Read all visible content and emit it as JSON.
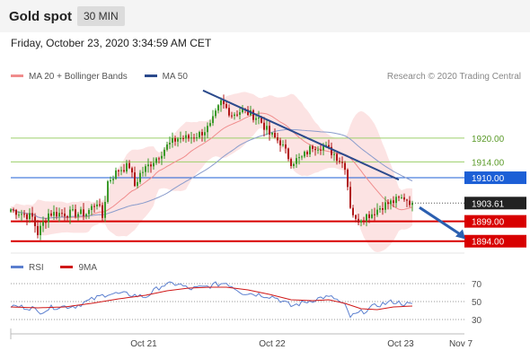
{
  "header": {
    "title": "Gold spot",
    "timeframe": "30 MIN"
  },
  "date_line": "Friday, October 23, 2020 3:34:59 AM CET",
  "legend": {
    "ma20": {
      "label": "MA 20 + Bollinger Bands",
      "color": "#f08c8c"
    },
    "ma50": {
      "label": "MA 50",
      "color": "#2b4a8c"
    }
  },
  "research": "Research © 2020 Trading Central",
  "rsi_legend": {
    "rsi": {
      "label": "RSI",
      "color": "#5b7fcf"
    },
    "ma9": {
      "label": "9MA",
      "color": "#d01818"
    }
  },
  "chart_data": {
    "type": "candlestick",
    "x_axis": {
      "ticks": [
        "Oct 21",
        "Oct 22",
        "Oct 23",
        "Nov 7"
      ]
    },
    "y_range": [
      1891,
      1934
    ],
    "levels": [
      {
        "label": "1920.00",
        "value": 1920.0,
        "kind": "resistance-minor"
      },
      {
        "label": "1914.00",
        "value": 1914.0,
        "kind": "resistance-minor"
      },
      {
        "label": "1910.00",
        "value": 1910.0,
        "kind": "pivot"
      },
      {
        "label": "1899.00",
        "value": 1899.0,
        "kind": "support"
      },
      {
        "label": "1894.00",
        "value": 1894.0,
        "kind": "support"
      }
    ],
    "last_price": {
      "label": "1903.61",
      "value": 1903.61
    },
    "trendline": {
      "from": {
        "idx": 78,
        "price": 1932.0
      },
      "to": {
        "idx": 144,
        "price": 1909.5
      }
    },
    "forecast": {
      "from": {
        "idx": 149,
        "price": 1902.5
      },
      "to": {
        "idx": 166,
        "price": 1894.5
      }
    },
    "candle_path": [
      [
        0,
        1902
      ],
      [
        8,
        1900
      ],
      [
        10,
        1896
      ],
      [
        14,
        1901
      ],
      [
        20,
        1901
      ],
      [
        28,
        1901
      ],
      [
        32,
        1904
      ],
      [
        34,
        1900
      ],
      [
        36,
        1909
      ],
      [
        40,
        1912
      ],
      [
        44,
        1913
      ],
      [
        46,
        1908
      ],
      [
        48,
        1911
      ],
      [
        54,
        1915
      ],
      [
        58,
        1918
      ],
      [
        62,
        1920
      ],
      [
        66,
        1920
      ],
      [
        70,
        1921
      ],
      [
        74,
        1923
      ],
      [
        76,
        1926
      ],
      [
        78,
        1929
      ],
      [
        82,
        1926
      ],
      [
        86,
        1927
      ],
      [
        92,
        1925
      ],
      [
        96,
        1921
      ],
      [
        100,
        1919
      ],
      [
        104,
        1914
      ],
      [
        108,
        1915
      ],
      [
        112,
        1918
      ],
      [
        116,
        1918
      ],
      [
        120,
        1916
      ],
      [
        124,
        1913
      ],
      [
        126,
        1903
      ],
      [
        128,
        1899
      ],
      [
        130,
        1900
      ],
      [
        134,
        1901
      ],
      [
        138,
        1903
      ],
      [
        142,
        1904
      ],
      [
        146,
        1905
      ],
      [
        149,
        1903.61
      ]
    ],
    "rsi": {
      "ticks": [
        70,
        50,
        30
      ],
      "path": [
        [
          0,
          45
        ],
        [
          8,
          43
        ],
        [
          10,
          38
        ],
        [
          16,
          44
        ],
        [
          24,
          45
        ],
        [
          30,
          52
        ],
        [
          36,
          59
        ],
        [
          44,
          58
        ],
        [
          50,
          55
        ],
        [
          56,
          68
        ],
        [
          62,
          70
        ],
        [
          66,
          64
        ],
        [
          72,
          66
        ],
        [
          76,
          69
        ],
        [
          80,
          71
        ],
        [
          86,
          60
        ],
        [
          92,
          58
        ],
        [
          98,
          55
        ],
        [
          104,
          45
        ],
        [
          110,
          50
        ],
        [
          116,
          55
        ],
        [
          120,
          54
        ],
        [
          124,
          45
        ],
        [
          126,
          33
        ],
        [
          130,
          38
        ],
        [
          136,
          46
        ],
        [
          142,
          50
        ],
        [
          149,
          46
        ]
      ],
      "ma_path": [
        [
          0,
          44
        ],
        [
          10,
          43
        ],
        [
          20,
          44
        ],
        [
          30,
          48
        ],
        [
          40,
          53
        ],
        [
          50,
          57
        ],
        [
          58,
          62
        ],
        [
          66,
          65
        ],
        [
          74,
          66
        ],
        [
          80,
          66
        ],
        [
          88,
          63
        ],
        [
          96,
          58
        ],
        [
          104,
          52
        ],
        [
          112,
          51
        ],
        [
          118,
          52
        ],
        [
          124,
          48
        ],
        [
          130,
          42
        ],
        [
          136,
          41
        ],
        [
          142,
          44
        ],
        [
          149,
          45
        ]
      ]
    }
  }
}
